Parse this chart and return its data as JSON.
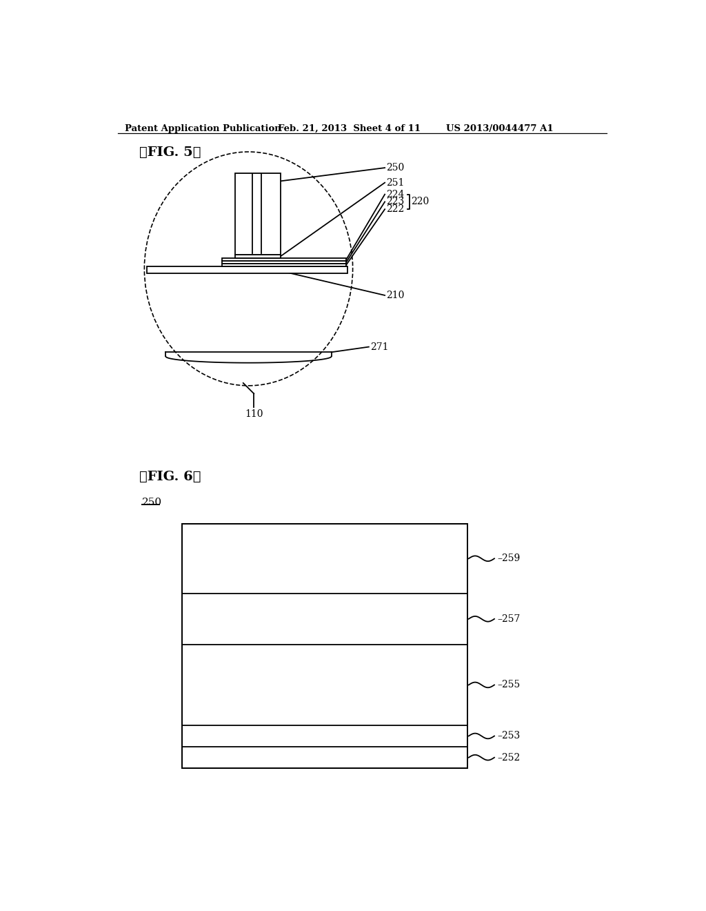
{
  "header_left": "Patent Application Publication",
  "header_mid": "Feb. 21, 2013  Sheet 4 of 11",
  "header_right": "US 2013/0044477 A1",
  "fig5_label": "【FIG. 5】",
  "fig6_label": "【FIG. 6】",
  "fig6_ref_label": "250",
  "background": "#ffffff",
  "line_color": "#000000"
}
